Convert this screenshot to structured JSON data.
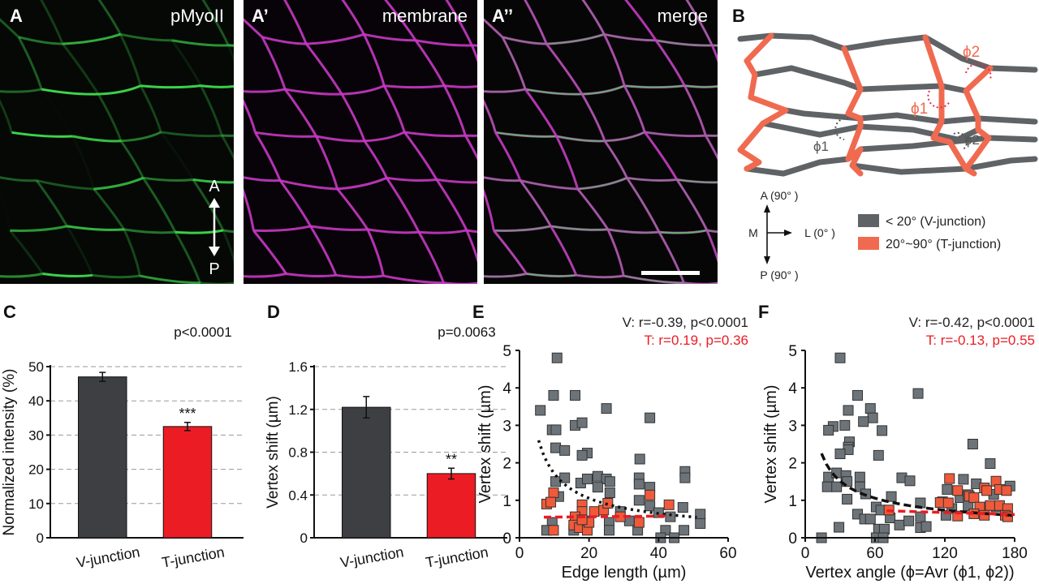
{
  "panels": {
    "A": {
      "letter": "A",
      "label": "pMyoII",
      "axis_top": "A",
      "axis_bottom": "P",
      "color": "#3ad24a"
    },
    "A1": {
      "letter": "A’",
      "label": "membrane",
      "color": "#d43cd0"
    },
    "A2": {
      "letter": "A’’",
      "label": "merge"
    },
    "B": {
      "letter": "B",
      "angle_labels": {
        "red_phi2": "ϕ2",
        "red_phi1": "ϕ1",
        "gray_phi1": "ϕ1",
        "gray_phi2": "ϕ2"
      },
      "compass": {
        "top": "A (90° )",
        "bottom": "P (90° )",
        "left": "M",
        "right": "L (0° )"
      },
      "legend": [
        {
          "label": "< 20° (V-junction)",
          "color": "#606366"
        },
        {
          "label": "20°~90° (T-junction)",
          "color": "#f06a50"
        }
      ]
    }
  },
  "chart_data": [
    {
      "panel": "C",
      "type": "bar",
      "categories": [
        "V-junction",
        "T-junction"
      ],
      "values": [
        47,
        32.5
      ],
      "errors": [
        1.3,
        1.2
      ],
      "colors": [
        "#3d3f42",
        "#ec1c24"
      ],
      "ylabel": "Normalized intensity (%)",
      "ylim": [
        0,
        50
      ],
      "yticks": [
        0,
        10,
        20,
        30,
        40,
        50
      ],
      "grid": true,
      "annotation": "p<0.0001",
      "significance": [
        "",
        "***"
      ]
    },
    {
      "panel": "D",
      "type": "bar",
      "categories": [
        "V-junction",
        "T-junction"
      ],
      "values": [
        1.22,
        0.6
      ],
      "errors": [
        0.1,
        0.05
      ],
      "colors": [
        "#3d3f42",
        "#ec1c24"
      ],
      "ylabel": "Vertex shift (µm)",
      "ylim": [
        0,
        1.6
      ],
      "yticks": [
        "0",
        "0.4",
        "0.8",
        "1.2",
        "1.6"
      ],
      "grid": true,
      "annotation": "p=0.0063",
      "significance": [
        "",
        "**"
      ]
    },
    {
      "panel": "E",
      "type": "scatter",
      "xlabel": "Edge length (µm)",
      "ylabel": "Vertex shift (µm)",
      "xlim": [
        0,
        60
      ],
      "ylim": [
        0,
        5
      ],
      "xticks": [
        0,
        20,
        40,
        60
      ],
      "yticks": [
        0,
        1,
        2,
        3,
        4,
        5
      ],
      "stats": [
        {
          "text": "V: r=-0.39, p<0.0001",
          "color": "#222222"
        },
        {
          "text": "T: r=0.19, p=0.36",
          "color": "#ec1c24"
        }
      ],
      "series": [
        {
          "group": "V",
          "color": "#6d7479",
          "points": [
            [
              10.8,
              4.8
            ],
            [
              9.8,
              3.8
            ],
            [
              16,
              3.8
            ],
            [
              6,
              3.4
            ],
            [
              25,
              3.45
            ],
            [
              37.5,
              3.2
            ],
            [
              9.4,
              2.88
            ],
            [
              10.5,
              2.88
            ],
            [
              16,
              3.0
            ],
            [
              18,
              3.07
            ],
            [
              10.4,
              2.4
            ],
            [
              13,
              2.33
            ],
            [
              19.5,
              2.26
            ],
            [
              18,
              2.2
            ],
            [
              34.6,
              2.1
            ],
            [
              47.6,
              1.77
            ],
            [
              47.6,
              1.6
            ],
            [
              10.4,
              1.5
            ],
            [
              13,
              1.6
            ],
            [
              17.6,
              1.46
            ],
            [
              19.5,
              1.57
            ],
            [
              22.5,
              1.64
            ],
            [
              25,
              1.57
            ],
            [
              26,
              1.5
            ],
            [
              22.5,
              1.35
            ],
            [
              26,
              1.2
            ],
            [
              34.4,
              1.6
            ],
            [
              34.4,
              1.43
            ],
            [
              37.5,
              1.35
            ],
            [
              11.3,
              1.1
            ],
            [
              34.4,
              1.0
            ],
            [
              37.5,
              0.85
            ],
            [
              47,
              0.81
            ],
            [
              40,
              0.67
            ],
            [
              43.4,
              0.56
            ],
            [
              52,
              0.63
            ],
            [
              52,
              0.38
            ],
            [
              9.4,
              0.41
            ],
            [
              7.8,
              0.2
            ],
            [
              25.8,
              0.41
            ],
            [
              25.8,
              0.2
            ],
            [
              29,
              0.7
            ],
            [
              31.6,
              0.45
            ],
            [
              34,
              0.2
            ],
            [
              42,
              0.2
            ],
            [
              40.6,
              0
            ],
            [
              44.5,
              0
            ],
            [
              47.3,
              0.2
            ],
            [
              19.5,
              0.45
            ],
            [
              15.6,
              0.2
            ]
          ],
          "trend": {
            "style": "dotted",
            "x": [
              5.5,
              51
            ],
            "model": "power",
            "a": 2.6,
            "b": -0.7,
            "x0": 5.5
          }
        },
        {
          "group": "T",
          "color": "#f05a3a",
          "points": [
            [
              9.8,
              1.2
            ],
            [
              7.8,
              0.9
            ],
            [
              9,
              0.95
            ],
            [
              18,
              0.88
            ],
            [
              18,
              0.7
            ],
            [
              16,
              0.56
            ],
            [
              15.6,
              0.34
            ],
            [
              17.2,
              0.27
            ],
            [
              19.5,
              0.2
            ],
            [
              9.8,
              0.2
            ],
            [
              21.5,
              0.7
            ],
            [
              24.2,
              0.74
            ],
            [
              25.4,
              0.92
            ],
            [
              29,
              0.56
            ],
            [
              34.4,
              0.41
            ],
            [
              37.5,
              1.14
            ],
            [
              43,
              0.88
            ],
            [
              20,
              0.41
            ],
            [
              18,
              0.48
            ]
          ],
          "trend": {
            "style": "dashed",
            "x": [
              7,
              43
            ],
            "y": [
              0.55,
              0.58
            ]
          }
        }
      ]
    },
    {
      "panel": "F",
      "type": "scatter",
      "xlabel": "Vertex angle (ϕ=Avr (ϕ1, ϕ2))",
      "ylabel": "Vertex shift (µm)",
      "xlim": [
        0,
        180
      ],
      "ylim": [
        0,
        5
      ],
      "xticks": [
        0,
        60,
        120,
        180
      ],
      "yticks": [
        0,
        1,
        2,
        3,
        4,
        5
      ],
      "stats": [
        {
          "text": "V: r=-0.42, p<0.0001",
          "color": "#222222"
        },
        {
          "text": "T: r=-0.13, p=0.55",
          "color": "#ec1c24"
        }
      ],
      "series": [
        {
          "group": "V",
          "color": "#6d7479",
          "points": [
            [
              30,
              4.8
            ],
            [
              45,
              3.8
            ],
            [
              97,
              3.85
            ],
            [
              37,
              3.4
            ],
            [
              56,
              3.45
            ],
            [
              58,
              3.2
            ],
            [
              50,
              3.1
            ],
            [
              34,
              3.0
            ],
            [
              24,
              2.97
            ],
            [
              20,
              2.87
            ],
            [
              66,
              2.86
            ],
            [
              38,
              2.56
            ],
            [
              37,
              2.42
            ],
            [
              37,
              2.35
            ],
            [
              30,
              2.24
            ],
            [
              63,
              2.2
            ],
            [
              20,
              1.62
            ],
            [
              19,
              1.36
            ],
            [
              27,
              1.36
            ],
            [
              27,
              1.73
            ],
            [
              35,
              1.66
            ],
            [
              36,
              1.5
            ],
            [
              47,
              1.62
            ],
            [
              47,
              1.36
            ],
            [
              52,
              1.17
            ],
            [
              36,
              1.03
            ],
            [
              74,
              1.1
            ],
            [
              83,
              1.6
            ],
            [
              90,
              1.52
            ],
            [
              99,
              0.93
            ],
            [
              45,
              0.63
            ],
            [
              51,
              0.5
            ],
            [
              56,
              0.5
            ],
            [
              61,
              0.82
            ],
            [
              65,
              0.74
            ],
            [
              63,
              0.23
            ],
            [
              68,
              0.23
            ],
            [
              61,
              0
            ],
            [
              67,
              0
            ],
            [
              29,
              0.28
            ],
            [
              14,
              0
            ],
            [
              73,
              0.53
            ],
            [
              81,
              0.34
            ],
            [
              89,
              0.45
            ],
            [
              99,
              0.56
            ],
            [
              99,
              0.27
            ],
            [
              104,
              0.3
            ],
            [
              144,
              2.5
            ],
            [
              159,
              1.98
            ],
            [
              136,
              1.56
            ],
            [
              147,
              1.44
            ],
            [
              122,
              1.29
            ],
            [
              176,
              1.38
            ],
            [
              133,
              1.07
            ],
            [
              140,
              1.15
            ],
            [
              162,
              1.16
            ],
            [
              121,
              0.6
            ],
            [
              126,
              0.78
            ],
            [
              140,
              0.85
            ],
            [
              150,
              0.74
            ],
            [
              164,
              0.82
            ]
          ],
          "trend": {
            "style": "dashed",
            "x": [
              14,
              180
            ],
            "model": "power",
            "a": 2.25,
            "b": -0.52,
            "x0": 14
          }
        },
        {
          "group": "T",
          "color": "#f05a3a",
          "points": [
            [
              118,
              0.96
            ],
            [
              116,
              0.94
            ],
            [
              124,
              1.58
            ],
            [
              131,
              1.26
            ],
            [
              141,
              1.11
            ],
            [
              145,
              1.07
            ],
            [
              154,
              1.33
            ],
            [
              156,
              1.26
            ],
            [
              164,
              1.51
            ],
            [
              167,
              1.29
            ],
            [
              173,
              1.26
            ],
            [
              123,
              0.93
            ],
            [
              150,
              0.82
            ],
            [
              159,
              0.86
            ],
            [
              167,
              0.86
            ],
            [
              174,
              0.78
            ],
            [
              131,
              0.58
            ],
            [
              145,
              0.64
            ],
            [
              154,
              0.6
            ],
            [
              172,
              0.6
            ],
            [
              174,
              0.56
            ],
            [
              72,
              0.74
            ]
          ],
          "trend": {
            "style": "dashed",
            "x": [
              70,
              180
            ],
            "y": [
              0.72,
              0.62
            ]
          }
        }
      ]
    }
  ]
}
